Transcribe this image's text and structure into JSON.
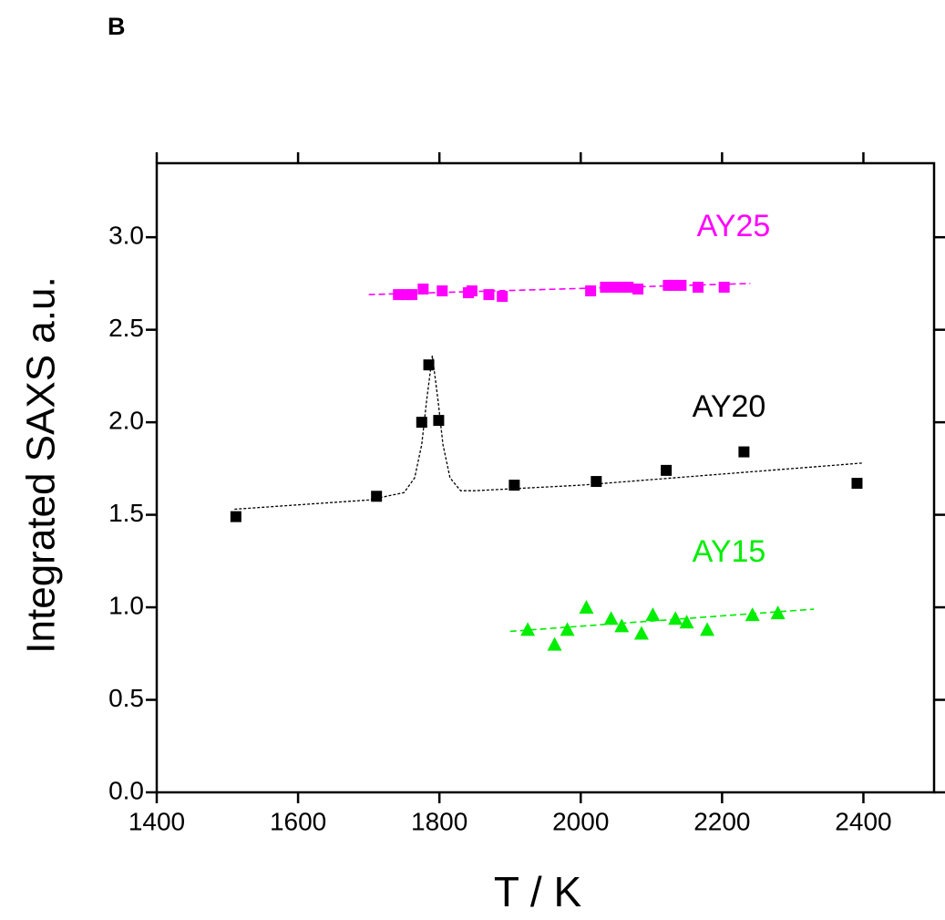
{
  "chart_data": {
    "type": "scatter",
    "panel_label": "B",
    "x_label": "T / K",
    "y_label": "Integrated SAXS a.u.",
    "xlim": [
      1400,
      2500
    ],
    "xticks": [
      1400,
      1600,
      1800,
      2000,
      2200,
      2400
    ],
    "ylim": [
      0,
      3.4
    ],
    "yticks": [
      {
        "value": 0,
        "label": "0.0"
      },
      0.5,
      {
        "value": 1,
        "label": "1.0"
      },
      1.5,
      {
        "value": 2,
        "label": "2.0"
      },
      2.5,
      {
        "value": 3,
        "label": "3.0"
      }
    ],
    "series": [
      {
        "name": "AY25",
        "color": "#ff00ff",
        "marker": "square",
        "x": [
          1742,
          1754,
          1761,
          1777,
          1804,
          1841,
          1846,
          1870,
          1889,
          2014,
          2035,
          2049,
          2061,
          2067,
          2081,
          2124,
          2130,
          2142,
          2166,
          2203
        ],
        "values": [
          2.69,
          2.69,
          2.69,
          2.72,
          2.71,
          2.7,
          2.71,
          2.69,
          2.68,
          2.71,
          2.73,
          2.73,
          2.73,
          2.73,
          2.72,
          2.74,
          2.74,
          2.74,
          2.73,
          2.73
        ]
      },
      {
        "name": "AY20",
        "color": "#000000",
        "marker": "square",
        "x": [
          1512,
          1711,
          1775,
          1785,
          1799,
          1906,
          2022,
          2121,
          2231,
          2391
        ],
        "values": [
          1.49,
          1.6,
          2.0,
          2.31,
          2.01,
          1.66,
          1.68,
          1.74,
          1.84,
          1.67
        ]
      },
      {
        "name": "AY15",
        "color": "#00ee00",
        "marker": "triangle",
        "x": [
          1925,
          1963,
          1981,
          2008,
          2043,
          2058,
          2086,
          2102,
          2134,
          2150,
          2179,
          2243,
          2279
        ],
        "values": [
          0.88,
          0.8,
          0.88,
          1.0,
          0.94,
          0.9,
          0.86,
          0.96,
          0.94,
          0.92,
          0.88,
          0.96,
          0.97
        ]
      }
    ],
    "fits": [
      {
        "color": "#ff00ff",
        "x": [
          1700,
          2240
        ],
        "values": [
          2.69,
          2.75
        ]
      },
      {
        "color": "#000000",
        "x": [
          1510,
          1700,
          1750,
          1765,
          1775,
          1782,
          1790,
          1798,
          1805,
          1815,
          1830,
          1850,
          2000,
          2400
        ],
        "values": [
          1.53,
          1.58,
          1.62,
          1.7,
          1.88,
          2.12,
          2.36,
          2.12,
          1.88,
          1.7,
          1.63,
          1.63,
          1.66,
          1.78
        ]
      },
      {
        "color": "#00ee00",
        "x": [
          1900,
          2330
        ],
        "values": [
          0.87,
          0.99
        ]
      }
    ]
  }
}
